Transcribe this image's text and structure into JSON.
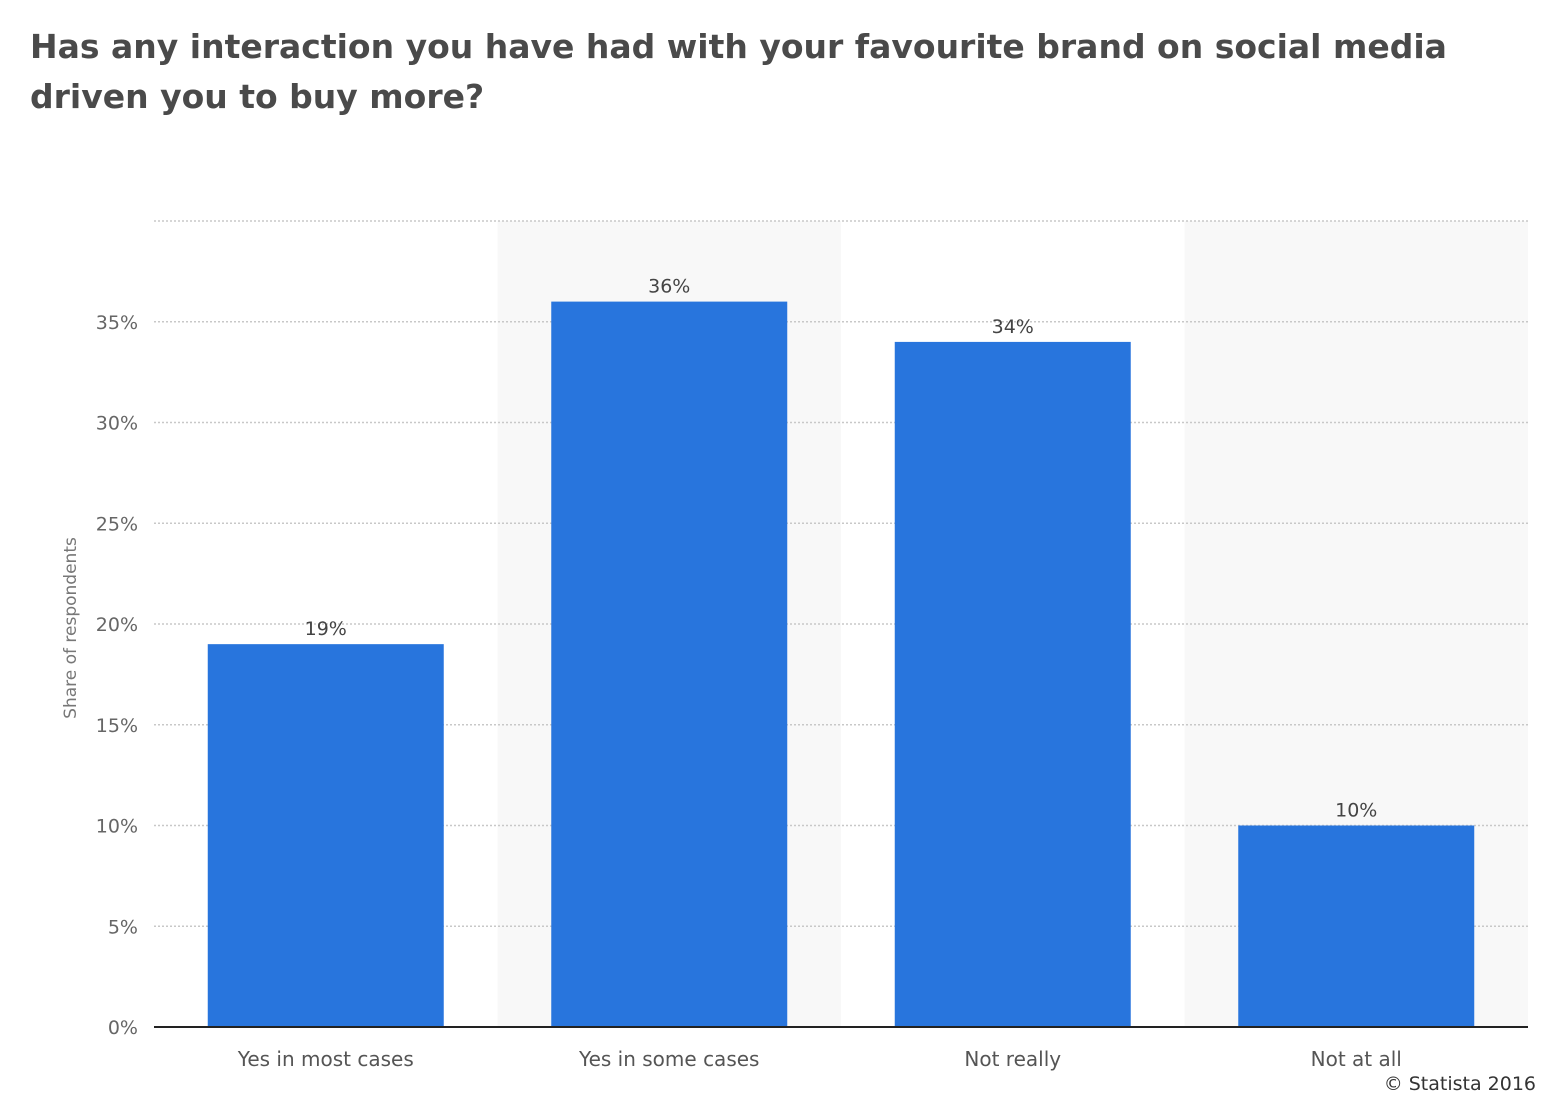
{
  "chart_data": {
    "type": "bar",
    "title": "Has any interaction you have had with your favourite brand on social media driven you to buy more?",
    "categories": [
      "Yes in most cases",
      "Yes in some cases",
      "Not really",
      "Not at all"
    ],
    "values": [
      19,
      36,
      34,
      10
    ],
    "data_labels": [
      "19%",
      "36%",
      "34%",
      "10%"
    ],
    "xlabel": "",
    "ylabel": "Share of respondents",
    "ylim": [
      0,
      40
    ],
    "yticks": [
      0,
      5,
      10,
      15,
      20,
      25,
      30,
      35
    ],
    "ytick_labels": [
      "0%",
      "5%",
      "10%",
      "15%",
      "20%",
      "25%",
      "30%",
      "35%"
    ],
    "grid": true,
    "legend": "none",
    "bar_color": "#2875dd",
    "band_color": "#f8f8f8"
  },
  "credit": "© Statista 2016"
}
